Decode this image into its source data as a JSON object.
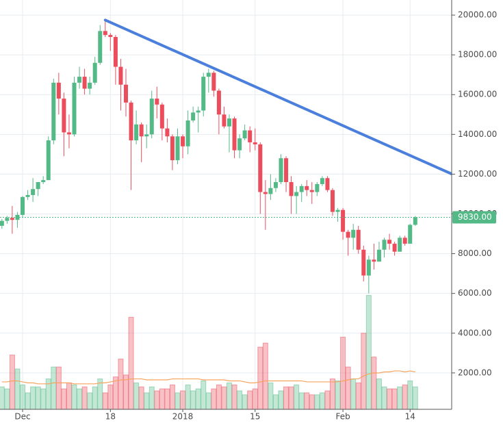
{
  "chart_data": {
    "type": "candlestick",
    "x": [
      "Nov 27",
      "Nov 28",
      "Nov 29",
      "Nov 30",
      "Dec 1",
      "Dec 2",
      "Dec 3",
      "Dec 4",
      "Dec 5",
      "Dec 6",
      "Dec 7",
      "Dec 8",
      "Dec 9",
      "Dec 10",
      "Dec 11",
      "Dec 12",
      "Dec 13",
      "Dec 14",
      "Dec 15",
      "Dec 16",
      "Dec 17",
      "Dec 18",
      "Dec 19",
      "Dec 20",
      "Dec 21",
      "Dec 22",
      "Dec 23",
      "Dec 24",
      "Dec 25",
      "Dec 26",
      "Dec 27",
      "Dec 28",
      "Dec 29",
      "Dec 30",
      "Dec 31",
      "Jan 1",
      "Jan 2",
      "Jan 3",
      "Jan 4",
      "Jan 5",
      "Jan 6",
      "Jan 7",
      "Jan 8",
      "Jan 9",
      "Jan 10",
      "Jan 11",
      "Jan 12",
      "Jan 13",
      "Jan 14",
      "Jan 15",
      "Jan 16",
      "Jan 17",
      "Jan 18",
      "Jan 19",
      "Jan 20",
      "Jan 21",
      "Jan 22",
      "Jan 23",
      "Jan 24",
      "Jan 25",
      "Jan 26",
      "Jan 27",
      "Jan 28",
      "Jan 29",
      "Jan 30",
      "Jan 31",
      "Feb 1",
      "Feb 2",
      "Feb 3",
      "Feb 4",
      "Feb 5",
      "Feb 6",
      "Feb 7",
      "Feb 8",
      "Feb 9",
      "Feb 10",
      "Feb 11",
      "Feb 12",
      "Feb 13",
      "Feb 14",
      "Feb 15"
    ],
    "ohlc": [
      [
        9400,
        9750,
        9250,
        9650
      ],
      [
        9650,
        9900,
        9500,
        9800
      ],
      [
        9800,
        10400,
        9000,
        9700
      ],
      [
        9700,
        10100,
        9300,
        9950
      ],
      [
        9950,
        10900,
        9800,
        10850
      ],
      [
        10850,
        11200,
        10700,
        10950
      ],
      [
        10950,
        11800,
        10600,
        11250
      ],
      [
        11250,
        11600,
        10900,
        11600
      ],
      [
        11600,
        11900,
        11500,
        11700
      ],
      [
        11700,
        13900,
        11700,
        13700
      ],
      [
        13700,
        16800,
        13500,
        16600
      ],
      [
        16600,
        17100,
        15000,
        15800
      ],
      [
        15800,
        16100,
        12900,
        14100
      ],
      [
        14100,
        15000,
        13300,
        14000
      ],
      [
        14000,
        16900,
        13900,
        16600
      ],
      [
        16600,
        17400,
        16300,
        16900
      ],
      [
        16900,
        17300,
        16000,
        16300
      ],
      [
        16300,
        16900,
        16000,
        16600
      ],
      [
        16600,
        17900,
        16500,
        17600
      ],
      [
        17600,
        19500,
        17500,
        19200
      ],
      [
        19200,
        19800,
        18900,
        19000
      ],
      [
        19000,
        19100,
        18200,
        18900
      ],
      [
        18900,
        19000,
        16500,
        17400
      ],
      [
        17400,
        17800,
        15200,
        16500
      ],
      [
        16500,
        17300,
        14900,
        15600
      ],
      [
        15600,
        15700,
        11200,
        13700
      ],
      [
        13700,
        15200,
        13500,
        14500
      ],
      [
        14500,
        14600,
        12600,
        13900
      ],
      [
        13900,
        14500,
        13300,
        14000
      ],
      [
        14000,
        16200,
        13800,
        15800
      ],
      [
        15800,
        16400,
        14800,
        15500
      ],
      [
        15500,
        15600,
        13700,
        14300
      ],
      [
        14300,
        14800,
        13600,
        13900
      ],
      [
        13900,
        14000,
        12200,
        12700
      ],
      [
        12700,
        14300,
        12500,
        13900
      ],
      [
        13900,
        14000,
        12800,
        13400
      ],
      [
        13400,
        15200,
        13000,
        14700
      ],
      [
        14700,
        15400,
        14600,
        15100
      ],
      [
        15100,
        15400,
        14100,
        15200
      ],
      [
        15200,
        17100,
        14900,
        16900
      ],
      [
        16900,
        17300,
        16100,
        17100
      ],
      [
        17100,
        17200,
        15900,
        16200
      ],
      [
        16200,
        16300,
        14000,
        15000
      ],
      [
        15000,
        15400,
        14300,
        14400
      ],
      [
        14400,
        15000,
        13100,
        14800
      ],
      [
        14800,
        14900,
        12800,
        13200
      ],
      [
        13200,
        14000,
        12800,
        13800
      ],
      [
        13800,
        14500,
        13700,
        14200
      ],
      [
        14200,
        14400,
        13100,
        13600
      ],
      [
        13600,
        14300,
        13200,
        13500
      ],
      [
        13500,
        13600,
        10000,
        11100
      ],
      [
        11100,
        11700,
        9200,
        11000
      ],
      [
        11000,
        12000,
        10700,
        11300
      ],
      [
        11300,
        11800,
        11100,
        11600
      ],
      [
        11600,
        13000,
        11500,
        12800
      ],
      [
        12800,
        12900,
        11100,
        11600
      ],
      [
        11600,
        11900,
        10000,
        10900
      ],
      [
        10900,
        11400,
        10000,
        11100
      ],
      [
        11100,
        11500,
        10600,
        11400
      ],
      [
        11400,
        11700,
        10900,
        11200
      ],
      [
        11200,
        11600,
        10500,
        11100
      ],
      [
        11100,
        11600,
        10900,
        11500
      ],
      [
        11500,
        11900,
        11400,
        11800
      ],
      [
        11800,
        11900,
        11100,
        11200
      ],
      [
        11200,
        11300,
        9900,
        10100
      ],
      [
        10100,
        10300,
        9600,
        10200
      ],
      [
        10200,
        10300,
        8700,
        9100
      ],
      [
        9100,
        9200,
        7900,
        8800
      ],
      [
        8800,
        9500,
        8200,
        9200
      ],
      [
        9200,
        9400,
        8000,
        8200
      ],
      [
        8200,
        8400,
        6600,
        6900
      ],
      [
        6900,
        7900,
        6000,
        7700
      ],
      [
        7700,
        8500,
        7200,
        7600
      ],
      [
        7600,
        8600,
        7600,
        8200
      ],
      [
        8200,
        8800,
        7800,
        8700
      ],
      [
        8700,
        9000,
        8200,
        8500
      ],
      [
        8500,
        8600,
        7900,
        8100
      ],
      [
        8100,
        8900,
        8100,
        8800
      ],
      [
        8800,
        8900,
        8400,
        8500
      ],
      [
        8500,
        9500,
        8500,
        9450
      ],
      [
        9450,
        9900,
        9400,
        9830
      ]
    ],
    "volume": [
      1300,
      1200,
      2900,
      2200,
      1400,
      1000,
      1300,
      1300,
      1200,
      1700,
      2300,
      2300,
      1200,
      1500,
      1400,
      1200,
      1300,
      1000,
      1300,
      1700,
      1000,
      1400,
      1800,
      2700,
      1900,
      4800,
      1500,
      1300,
      1000,
      1300,
      1100,
      1200,
      1200,
      1400,
      1000,
      1100,
      1400,
      1100,
      1200,
      1600,
      1000,
      1200,
      1400,
      1300,
      1500,
      1400,
      1100,
      900,
      1100,
      1200,
      3300,
      3500,
      1500,
      900,
      1100,
      1300,
      1300,
      1400,
      1000,
      1000,
      900,
      900,
      1000,
      1100,
      1700,
      1600,
      3800,
      2300,
      1700,
      1500,
      4000,
      5900,
      2800,
      1700,
      1300,
      1200,
      1200,
      1300,
      1400,
      1600,
      1300
    ],
    "volume_ma": {
      "color": "#f7a35c",
      "values": [
        1550,
        1550,
        1600,
        1600,
        1550,
        1500,
        1500,
        1450,
        1450,
        1450,
        1500,
        1500,
        1500,
        1500,
        1450,
        1450,
        1450,
        1450,
        1450,
        1500,
        1500,
        1550,
        1600,
        1650,
        1650,
        1700,
        1700,
        1700,
        1650,
        1650,
        1650,
        1650,
        1650,
        1700,
        1700,
        1700,
        1700,
        1700,
        1700,
        1650,
        1650,
        1650,
        1650,
        1650,
        1600,
        1600,
        1600,
        1550,
        1500,
        1500,
        1550,
        1600,
        1600,
        1600,
        1600,
        1600,
        1600,
        1600,
        1600,
        1550,
        1550,
        1550,
        1550,
        1550,
        1550,
        1550,
        1600,
        1650,
        1700,
        1700,
        1850,
        1950,
        2000,
        2000,
        2050,
        2050,
        2100,
        2100,
        2050,
        2100,
        2050
      ]
    },
    "up_color": "#53b987",
    "down_color": "#eb4d5c",
    "ylim": [
      170,
      20760
    ],
    "yticks": [
      {
        "value": 2000,
        "label": "2000.00"
      },
      {
        "value": 4000,
        "label": "4000.00"
      },
      {
        "value": 6000,
        "label": "6000.00"
      },
      {
        "value": 8000,
        "label": "8000.00"
      },
      {
        "value": 10000,
        "label": "10000.00"
      },
      {
        "value": 12000,
        "label": "12000.00"
      },
      {
        "value": 14000,
        "label": "14000.00"
      },
      {
        "value": 16000,
        "label": "16000.00"
      },
      {
        "value": 18000,
        "label": "18000.00"
      },
      {
        "value": 20000,
        "label": "20000.00"
      }
    ],
    "xticks": [
      {
        "value": "Dec 1",
        "label": "Dec"
      },
      {
        "value": "Dec 18",
        "label": "18"
      },
      {
        "value": "Jan 1",
        "label": "2018"
      },
      {
        "value": "Jan 15",
        "label": "15"
      },
      {
        "value": "Feb 1",
        "label": "Feb"
      },
      {
        "value": "Feb 14",
        "label": "14"
      }
    ],
    "grid": true,
    "price_line": {
      "value": 9830,
      "label": "9830.00",
      "color": "#53b987"
    },
    "trendline": {
      "color": "#4a7fdc",
      "points": [
        {
          "x": "Dec 17",
          "y": 19750
        },
        {
          "x": "Feb 23",
          "y": 11900
        }
      ]
    }
  }
}
